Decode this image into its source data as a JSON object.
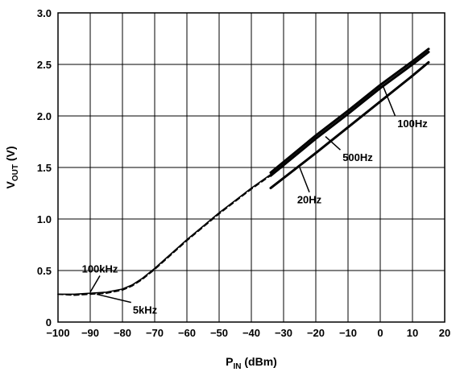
{
  "chart_data": {
    "type": "line",
    "xlabel": "P",
    "xlabel_sub": "IN",
    "xlabel_unit": " (dBm)",
    "ylabel": "V",
    "ylabel_sub": "OUT",
    "ylabel_unit": " (V)",
    "xlim": [
      -100,
      20
    ],
    "ylim": [
      0,
      3.0
    ],
    "xticks": [
      -100,
      -90,
      -80,
      -70,
      -60,
      -50,
      -40,
      -30,
      -20,
      -10,
      0,
      10,
      20
    ],
    "xtick_labels": [
      "−100",
      "−90",
      "−80",
      "−70",
      "−60",
      "−50",
      "−40",
      "−30",
      "−20",
      "−10",
      "0",
      "10",
      "20"
    ],
    "yticks": [
      0,
      0.5,
      1.0,
      1.5,
      2.0,
      2.5,
      3.0
    ],
    "ytick_labels": [
      "0",
      "0.5",
      "1.0",
      "1.5",
      "2.0",
      "2.5",
      "3.0"
    ],
    "grid": true,
    "series": [
      {
        "name": "100kHz",
        "style": "solid",
        "x": [
          -100,
          -95,
          -90,
          -85,
          -80,
          -77,
          -74,
          -70,
          -65,
          -60,
          -55,
          -50,
          -45,
          -40,
          -35,
          -30
        ],
        "y": [
          0.27,
          0.27,
          0.28,
          0.29,
          0.32,
          0.36,
          0.42,
          0.52,
          0.66,
          0.8,
          0.93,
          1.06,
          1.18,
          1.3,
          1.41,
          1.52
        ]
      },
      {
        "name": "5kHz",
        "style": "dashed",
        "x": [
          -100,
          -95,
          -90,
          -85,
          -80,
          -77,
          -74,
          -70,
          -65,
          -60,
          -55,
          -50,
          -45,
          -40,
          -35,
          -30
        ],
        "y": [
          0.27,
          0.26,
          0.27,
          0.28,
          0.31,
          0.35,
          0.41,
          0.51,
          0.65,
          0.79,
          0.92,
          1.05,
          1.17,
          1.29,
          1.4,
          1.51
        ]
      },
      {
        "name": "100Hz",
        "style": "solid",
        "x": [
          -34,
          -20,
          -10,
          0,
          10,
          15
        ],
        "y": [
          1.45,
          1.81,
          2.05,
          2.3,
          2.53,
          2.65
        ]
      },
      {
        "name": "500Hz",
        "style": "solid",
        "x": [
          -34,
          -20,
          -10,
          0,
          10,
          15
        ],
        "y": [
          1.42,
          1.78,
          2.02,
          2.27,
          2.5,
          2.62
        ]
      },
      {
        "name": "20Hz",
        "style": "solid",
        "x": [
          -34,
          -20,
          -10,
          0,
          10,
          15
        ],
        "y": [
          1.3,
          1.64,
          1.89,
          2.14,
          2.39,
          2.52
        ]
      }
    ],
    "annotations": [
      {
        "text": "100kHz",
        "points_to": [
          -90,
          0.29
        ]
      },
      {
        "text": "5kHz",
        "points_to": [
          -88,
          0.27
        ]
      },
      {
        "text": "100Hz",
        "points_to": [
          1,
          2.28
        ]
      },
      {
        "text": "500Hz",
        "points_to": [
          -17,
          1.8
        ]
      },
      {
        "text": "20Hz",
        "points_to": [
          -25,
          1.5
        ]
      }
    ]
  }
}
